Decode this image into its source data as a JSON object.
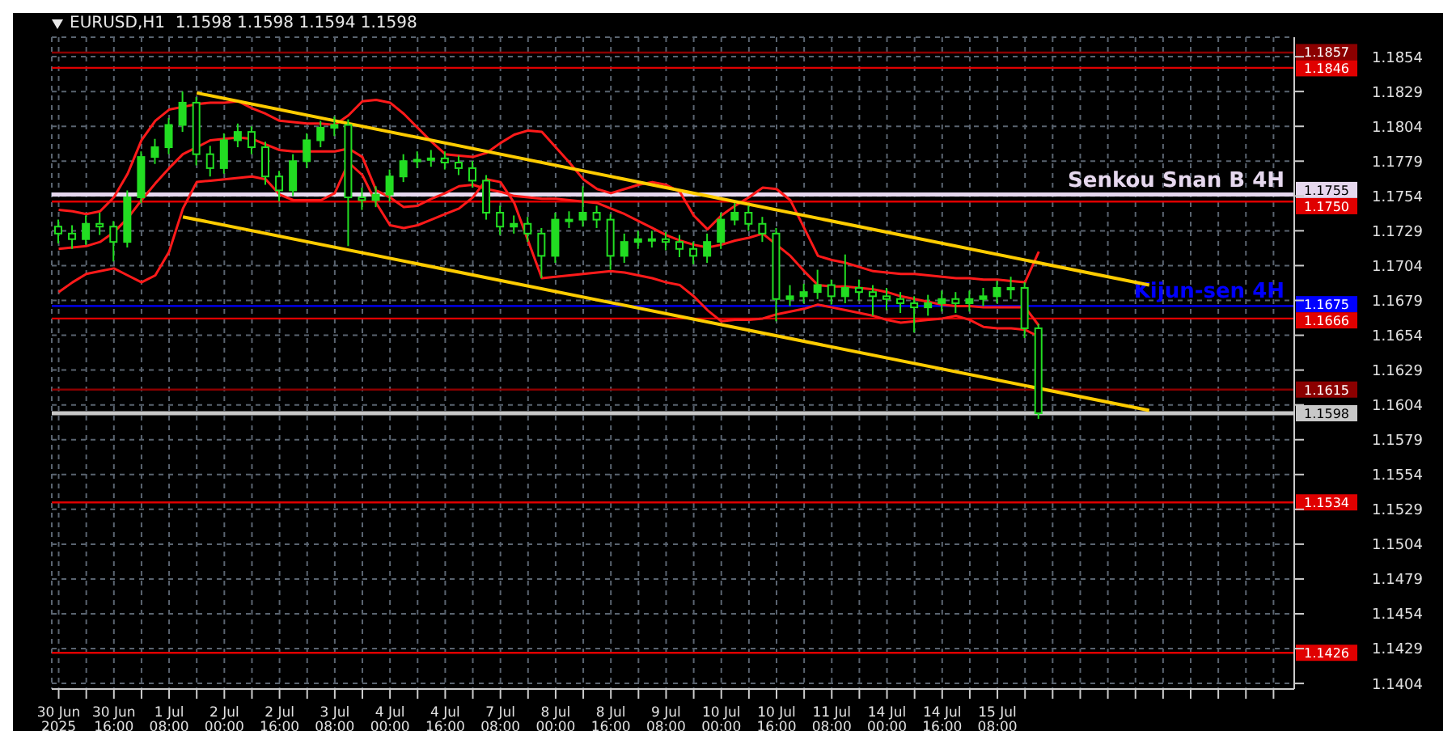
{
  "chart_data": {
    "type": "candlestick",
    "title": "EURUSD,H1  1.1598 1.1598 1.1594 1.1598",
    "categories": [
      "30 Jun 2025",
      null,
      null,
      null,
      "30 Jun 16:00",
      null,
      null,
      null,
      "1 Jul 08:00",
      null,
      null,
      null,
      "2 Jul 00:00",
      null,
      null,
      null,
      "2 Jul 16:00",
      null,
      null,
      null,
      "3 Jul 08:00",
      null,
      null,
      null,
      "4 Jul 00:00",
      null,
      null,
      null,
      "4 Jul 16:00",
      null,
      null,
      null,
      "7 Jul 08:00",
      null,
      null,
      null,
      "8 Jul 00:00",
      null,
      null,
      null,
      "8 Jul 16:00",
      null,
      null,
      null,
      "9 Jul 08:00",
      null,
      null,
      null,
      "10 Jul 00:00",
      null,
      null,
      null,
      "10 Jul 16:00",
      null,
      null,
      null,
      "11 Jul 08:00",
      null,
      null,
      null,
      "14 Jul 00:00",
      null,
      null,
      null,
      "14 Jul 16:00",
      null,
      null,
      null,
      "15 Jul 08:00",
      null,
      null,
      null,
      null,
      null,
      null,
      null,
      null,
      null,
      null,
      null,
      null,
      null,
      null,
      null,
      null,
      null,
      null,
      null,
      null,
      null
    ],
    "ohlc": [
      [
        1.1732,
        1.1737,
        1.172,
        1.1727
      ],
      [
        1.1727,
        1.1733,
        1.1716,
        1.1723
      ],
      [
        1.1723,
        1.174,
        1.1719,
        1.1734
      ],
      [
        1.1734,
        1.1742,
        1.1726,
        1.1732
      ],
      [
        1.1732,
        1.1736,
        1.1707,
        1.1721
      ],
      [
        1.1721,
        1.1758,
        1.1717,
        1.1753
      ],
      [
        1.1753,
        1.1786,
        1.1749,
        1.1782
      ],
      [
        1.1782,
        1.1795,
        1.1777,
        1.1789
      ],
      [
        1.1789,
        1.181,
        1.1784,
        1.1805
      ],
      [
        1.1805,
        1.1829,
        1.18,
        1.1821
      ],
      [
        1.1821,
        1.1825,
        1.1776,
        1.1784
      ],
      [
        1.1784,
        1.179,
        1.1768,
        1.1774
      ],
      [
        1.1774,
        1.1799,
        1.177,
        1.1794
      ],
      [
        1.1794,
        1.1806,
        1.1789,
        1.18
      ],
      [
        1.18,
        1.1804,
        1.1784,
        1.1789
      ],
      [
        1.1789,
        1.1793,
        1.1762,
        1.1768
      ],
      [
        1.1768,
        1.1772,
        1.175,
        1.1758
      ],
      [
        1.1758,
        1.1784,
        1.1754,
        1.1779
      ],
      [
        1.1779,
        1.1799,
        1.1774,
        1.1794
      ],
      [
        1.1794,
        1.1808,
        1.1789,
        1.1803
      ],
      [
        1.1803,
        1.1811,
        1.1797,
        1.1805
      ],
      [
        1.1805,
        1.1809,
        1.1718,
        1.1753
      ],
      [
        1.1753,
        1.176,
        1.1744,
        1.1751
      ],
      [
        1.1751,
        1.1761,
        1.1746,
        1.1755
      ],
      [
        1.1755,
        1.1773,
        1.175,
        1.1768
      ],
      [
        1.1768,
        1.1784,
        1.1764,
        1.1779
      ],
      [
        1.1779,
        1.1786,
        1.1774,
        1.178
      ],
      [
        1.178,
        1.1787,
        1.1775,
        1.1781
      ],
      [
        1.1781,
        1.1786,
        1.1773,
        1.1778
      ],
      [
        1.1778,
        1.1783,
        1.1769,
        1.1774
      ],
      [
        1.1774,
        1.1779,
        1.176,
        1.1765
      ],
      [
        1.1765,
        1.1769,
        1.1737,
        1.1742
      ],
      [
        1.1742,
        1.1747,
        1.1726,
        1.1732
      ],
      [
        1.1732,
        1.174,
        1.1727,
        1.1734
      ],
      [
        1.1734,
        1.1739,
        1.1721,
        1.1727
      ],
      [
        1.1727,
        1.1731,
        1.1695,
        1.1711
      ],
      [
        1.1711,
        1.1742,
        1.1706,
        1.1737
      ],
      [
        1.1737,
        1.1743,
        1.1731,
        1.1737
      ],
      [
        1.1737,
        1.1761,
        1.1732,
        1.1742
      ],
      [
        1.1742,
        1.1747,
        1.1731,
        1.1737
      ],
      [
        1.1737,
        1.1741,
        1.1701,
        1.1711
      ],
      [
        1.1711,
        1.1727,
        1.1706,
        1.1721
      ],
      [
        1.1721,
        1.1729,
        1.1716,
        1.1723
      ],
      [
        1.1723,
        1.1729,
        1.1717,
        1.1723
      ],
      [
        1.1723,
        1.1728,
        1.1715,
        1.1721
      ],
      [
        1.1721,
        1.1726,
        1.171,
        1.1716
      ],
      [
        1.1716,
        1.1721,
        1.1705,
        1.1711
      ],
      [
        1.1711,
        1.1727,
        1.1706,
        1.1721
      ],
      [
        1.1721,
        1.1742,
        1.1716,
        1.1737
      ],
      [
        1.1737,
        1.1749,
        1.1733,
        1.1742
      ],
      [
        1.1742,
        1.1747,
        1.1729,
        1.1734
      ],
      [
        1.1734,
        1.1739,
        1.1721,
        1.1727
      ],
      [
        1.1727,
        1.1731,
        1.1664,
        1.168
      ],
      [
        1.168,
        1.169,
        1.1675,
        1.1682
      ],
      [
        1.1682,
        1.1691,
        1.1677,
        1.1685
      ],
      [
        1.1685,
        1.1701,
        1.168,
        1.169
      ],
      [
        1.169,
        1.1694,
        1.1676,
        1.1682
      ],
      [
        1.1682,
        1.1712,
        1.1677,
        1.1688
      ],
      [
        1.1688,
        1.1694,
        1.1679,
        1.1685
      ],
      [
        1.1685,
        1.169,
        1.1668,
        1.1682
      ],
      [
        1.1682,
        1.1688,
        1.1672,
        1.168
      ],
      [
        1.168,
        1.1685,
        1.167,
        1.1677
      ],
      [
        1.1677,
        1.1682,
        1.1656,
        1.1674
      ],
      [
        1.1674,
        1.1683,
        1.1668,
        1.1677
      ],
      [
        1.1677,
        1.1686,
        1.1671,
        1.168
      ],
      [
        1.168,
        1.1685,
        1.167,
        1.1677
      ],
      [
        1.1677,
        1.1686,
        1.1671,
        1.168
      ],
      [
        1.168,
        1.1688,
        1.1675,
        1.1682
      ],
      [
        1.1682,
        1.1693,
        1.1677,
        1.1688
      ],
      [
        1.1688,
        1.1696,
        1.168,
        1.1688
      ],
      [
        1.1688,
        1.1692,
        1.1652,
        1.1659
      ],
      [
        1.1659,
        1.1662,
        1.1594,
        1.1598
      ],
      null,
      null,
      null,
      null,
      null,
      null,
      null,
      null,
      null,
      null,
      null,
      null,
      null,
      null,
      null,
      null,
      null,
      null
    ],
    "series": [
      {
        "type": "line",
        "color": "#ff1a1a",
        "values": [
          1.1744,
          1.1743,
          1.1741,
          1.1743,
          1.1753,
          1.177,
          1.1794,
          1.1808,
          1.1816,
          1.1818,
          1.182,
          1.1821,
          1.1821,
          1.1822,
          1.1817,
          1.1813,
          1.1808,
          1.1807,
          1.1806,
          1.1806,
          1.1805,
          1.1812,
          1.1822,
          1.1823,
          1.1821,
          1.1813,
          1.1803,
          1.1793,
          1.1784,
          1.1783,
          1.1782,
          1.1785,
          1.1792,
          1.1798,
          1.1801,
          1.18,
          1.1789,
          1.1778,
          1.1766,
          1.1759,
          1.1756,
          1.1759,
          1.1762,
          1.1764,
          1.1762,
          1.1757,
          1.174,
          1.173,
          1.174,
          1.1747,
          1.1753,
          1.176,
          1.1759,
          1.1751,
          1.1731,
          1.1711,
          1.1708,
          1.1706,
          1.1703,
          1.17,
          1.1699,
          1.1698,
          1.1698,
          1.1697,
          1.1696,
          1.1695,
          1.1695,
          1.1694,
          1.1694,
          1.1693,
          1.1692,
          1.1714,
          null,
          null,
          null,
          null,
          null,
          null,
          null,
          null,
          null,
          null,
          null,
          null,
          null,
          null,
          null,
          null,
          null,
          null
        ]
      },
      {
        "type": "line",
        "color": "#ff1a1a",
        "values": [
          1.1716,
          1.1717,
          1.1718,
          1.1721,
          1.1728,
          1.1738,
          1.1751,
          1.1763,
          1.1774,
          1.1784,
          1.1789,
          1.1794,
          1.1795,
          1.1796,
          1.1795,
          1.1791,
          1.1787,
          1.1786,
          1.1786,
          1.1786,
          1.1786,
          1.1788,
          1.1782,
          1.1758,
          1.1753,
          1.1746,
          1.1747,
          1.1752,
          1.1756,
          1.1761,
          1.1762,
          1.1759,
          1.1757,
          1.1754,
          1.1753,
          1.1752,
          1.1752,
          1.1751,
          1.175,
          1.1749,
          1.1745,
          1.1741,
          1.1736,
          1.1731,
          1.1726,
          1.1722,
          1.1719,
          1.1717,
          1.1719,
          1.1722,
          1.1724,
          1.1727,
          1.1719,
          1.1711,
          1.17,
          1.169,
          1.1689,
          1.1689,
          1.1688,
          1.1687,
          1.1685,
          1.1682,
          1.168,
          1.1678,
          1.1676,
          1.1675,
          1.1675,
          1.1674,
          1.1674,
          1.1674,
          1.1674,
          1.1661,
          null,
          null,
          null,
          null,
          null,
          null,
          null,
          null,
          null,
          null,
          null,
          null,
          null,
          null,
          null,
          null,
          null,
          null
        ]
      },
      {
        "type": "line",
        "color": "#ff1a1a",
        "values": [
          1.1685,
          1.1692,
          1.1698,
          1.17,
          1.1702,
          1.1697,
          1.1692,
          1.1697,
          1.1714,
          1.1745,
          1.1764,
          1.1765,
          1.1766,
          1.1767,
          1.1768,
          1.1766,
          1.1755,
          1.1751,
          1.1751,
          1.1751,
          1.1756,
          1.1778,
          1.1769,
          1.1749,
          1.1733,
          1.1731,
          1.1733,
          1.1737,
          1.1741,
          1.1745,
          1.1753,
          1.1766,
          1.1764,
          1.1749,
          1.1722,
          1.1695,
          1.1696,
          1.1697,
          1.1698,
          1.1699,
          1.17,
          1.1699,
          1.1697,
          1.1695,
          1.1692,
          1.169,
          1.1682,
          1.1672,
          1.1664,
          1.1665,
          1.1665,
          1.1666,
          1.1669,
          1.1671,
          1.1673,
          1.1676,
          1.1674,
          1.1672,
          1.167,
          1.1668,
          1.1665,
          1.1663,
          1.1664,
          1.1665,
          1.1666,
          1.1668,
          1.1665,
          1.166,
          1.1659,
          1.1659,
          1.1658,
          1.1653,
          null,
          null,
          null,
          null,
          null,
          null,
          null,
          null,
          null,
          null,
          null,
          null,
          null,
          null,
          null,
          null,
          null,
          null
        ]
      },
      {
        "type": "line",
        "color": "#ffcc00",
        "values": [
          null,
          null,
          null,
          null,
          null,
          null,
          null,
          null,
          null,
          null,
          1.1828,
          null,
          null,
          null,
          null,
          null,
          null,
          null,
          null,
          null,
          null,
          null,
          null,
          null,
          null,
          null,
          null,
          null,
          null,
          null,
          null,
          null,
          null,
          null,
          null,
          null,
          null,
          null,
          null,
          null,
          null,
          null,
          null,
          null,
          null,
          null,
          null,
          null,
          null,
          null,
          null,
          null,
          null,
          null,
          null,
          null,
          null,
          null,
          null,
          null,
          null,
          null,
          null,
          null,
          null,
          null,
          null,
          null,
          null,
          null,
          null,
          null,
          null,
          null,
          null,
          null,
          null,
          null,
          null,
          1.169,
          null,
          null,
          null,
          null,
          null,
          null,
          null,
          null,
          null,
          null
        ]
      },
      {
        "type": "line",
        "color": "#ffcc00",
        "values": [
          null,
          null,
          null,
          null,
          null,
          null,
          null,
          null,
          null,
          1.1739,
          null,
          null,
          null,
          null,
          null,
          null,
          null,
          null,
          null,
          null,
          null,
          null,
          null,
          null,
          null,
          null,
          null,
          null,
          null,
          null,
          null,
          null,
          null,
          null,
          null,
          null,
          null,
          null,
          null,
          null,
          null,
          null,
          null,
          null,
          null,
          null,
          null,
          null,
          null,
          null,
          null,
          null,
          null,
          null,
          null,
          null,
          null,
          null,
          null,
          null,
          null,
          null,
          null,
          null,
          null,
          null,
          null,
          null,
          null,
          null,
          null,
          null,
          null,
          null,
          null,
          null,
          null,
          null,
          null,
          1.16,
          null,
          null,
          null,
          null,
          null,
          null,
          null,
          null,
          null,
          null
        ]
      }
    ],
    "ref_lines": [
      {
        "axis": "y",
        "value": 1.1857,
        "color": "#8b0000",
        "label": "1.1857"
      },
      {
        "axis": "y",
        "value": 1.1846,
        "color": "#e00000",
        "label": "1.1846"
      },
      {
        "axis": "y",
        "value": 1.1755,
        "color": "#e6d8ee",
        "label": "1.1755"
      },
      {
        "axis": "y",
        "value": 1.175,
        "color": "#e00000",
        "label": "1.1750"
      },
      {
        "axis": "y",
        "value": 1.1675,
        "color": "#0000ff",
        "label": "1.1675"
      },
      {
        "axis": "y",
        "value": 1.1666,
        "color": "#e00000",
        "label": "1.1666"
      },
      {
        "axis": "y",
        "value": 1.1615,
        "color": "#8b0000",
        "label": "1.1615"
      },
      {
        "axis": "y",
        "value": 1.1598,
        "color": "#c8c8c8",
        "label": "1.1598"
      },
      {
        "axis": "y",
        "value": 1.1534,
        "color": "#e00000",
        "label": "1.1534"
      },
      {
        "axis": "y",
        "value": 1.1426,
        "color": "#e00000",
        "label": "1.1426"
      }
    ],
    "annotations": [
      {
        "text": "Senkou Snan B 4H",
        "y": 1.1755
      },
      {
        "text": "Kijun-sen 4H",
        "y": 1.1675
      }
    ],
    "ylim": [
      1.14,
      1.1868
    ],
    "yticks": [
      1.1404,
      1.1429,
      1.1454,
      1.1479,
      1.1504,
      1.1529,
      1.1554,
      1.1579,
      1.1604,
      1.1629,
      1.1654,
      1.1679,
      1.1704,
      1.1729,
      1.1754,
      1.1779,
      1.1804,
      1.1829,
      1.1854
    ],
    "grid": true
  }
}
